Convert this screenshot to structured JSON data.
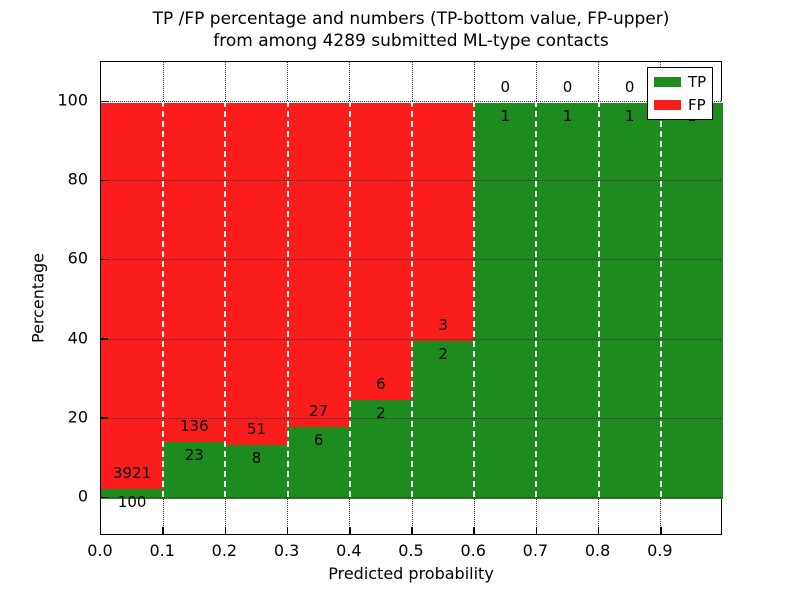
{
  "title": {
    "line1": "TP /FP percentage and numbers (TP-bottom value, FP-upper)",
    "line2": "from among 4289 submitted ML-type contacts"
  },
  "chart_data": {
    "type": "bar",
    "stacked": true,
    "title": "TP /FP percentage and numbers (TP-bottom value, FP-upper) from among 4289 submitted ML-type contacts",
    "xlabel": "Predicted probability",
    "ylabel": "Percentage",
    "x_tick_labels": [
      "0.0",
      "0.1",
      "0.2",
      "0.3",
      "0.4",
      "0.5",
      "0.6",
      "0.7",
      "0.8",
      "0.9"
    ],
    "y_tick_values": [
      0,
      20,
      40,
      60,
      80,
      100
    ],
    "xlim": [
      0.0,
      1.0
    ],
    "ylim_percent": [
      0,
      100
    ],
    "grid": true,
    "total_contacts": 4289,
    "legend": {
      "position": "upper right",
      "entries": [
        {
          "label": "TP",
          "color": "#1e8b1e"
        },
        {
          "label": "FP",
          "color": "#fb1c1c"
        }
      ]
    },
    "bins": [
      {
        "x0": 0.0,
        "x1": 0.1,
        "tp": 100,
        "fp": 3921
      },
      {
        "x0": 0.1,
        "x1": 0.2,
        "tp": 23,
        "fp": 136
      },
      {
        "x0": 0.2,
        "x1": 0.3,
        "tp": 8,
        "fp": 51
      },
      {
        "x0": 0.3,
        "x1": 0.4,
        "tp": 6,
        "fp": 27
      },
      {
        "x0": 0.4,
        "x1": 0.5,
        "tp": 2,
        "fp": 6
      },
      {
        "x0": 0.5,
        "x1": 0.6,
        "tp": 2,
        "fp": 3
      },
      {
        "x0": 0.6,
        "x1": 0.7,
        "tp": 1,
        "fp": 0
      },
      {
        "x0": 0.7,
        "x1": 0.8,
        "tp": 1,
        "fp": 0
      },
      {
        "x0": 0.8,
        "x1": 0.9,
        "tp": 1,
        "fp": 0
      },
      {
        "x0": 0.9,
        "x1": 1.0,
        "tp": 1,
        "fp": 0
      }
    ],
    "colors": {
      "tp": "#1e8b1e",
      "fp": "#fb1c1c",
      "background": "#ffffff"
    }
  }
}
